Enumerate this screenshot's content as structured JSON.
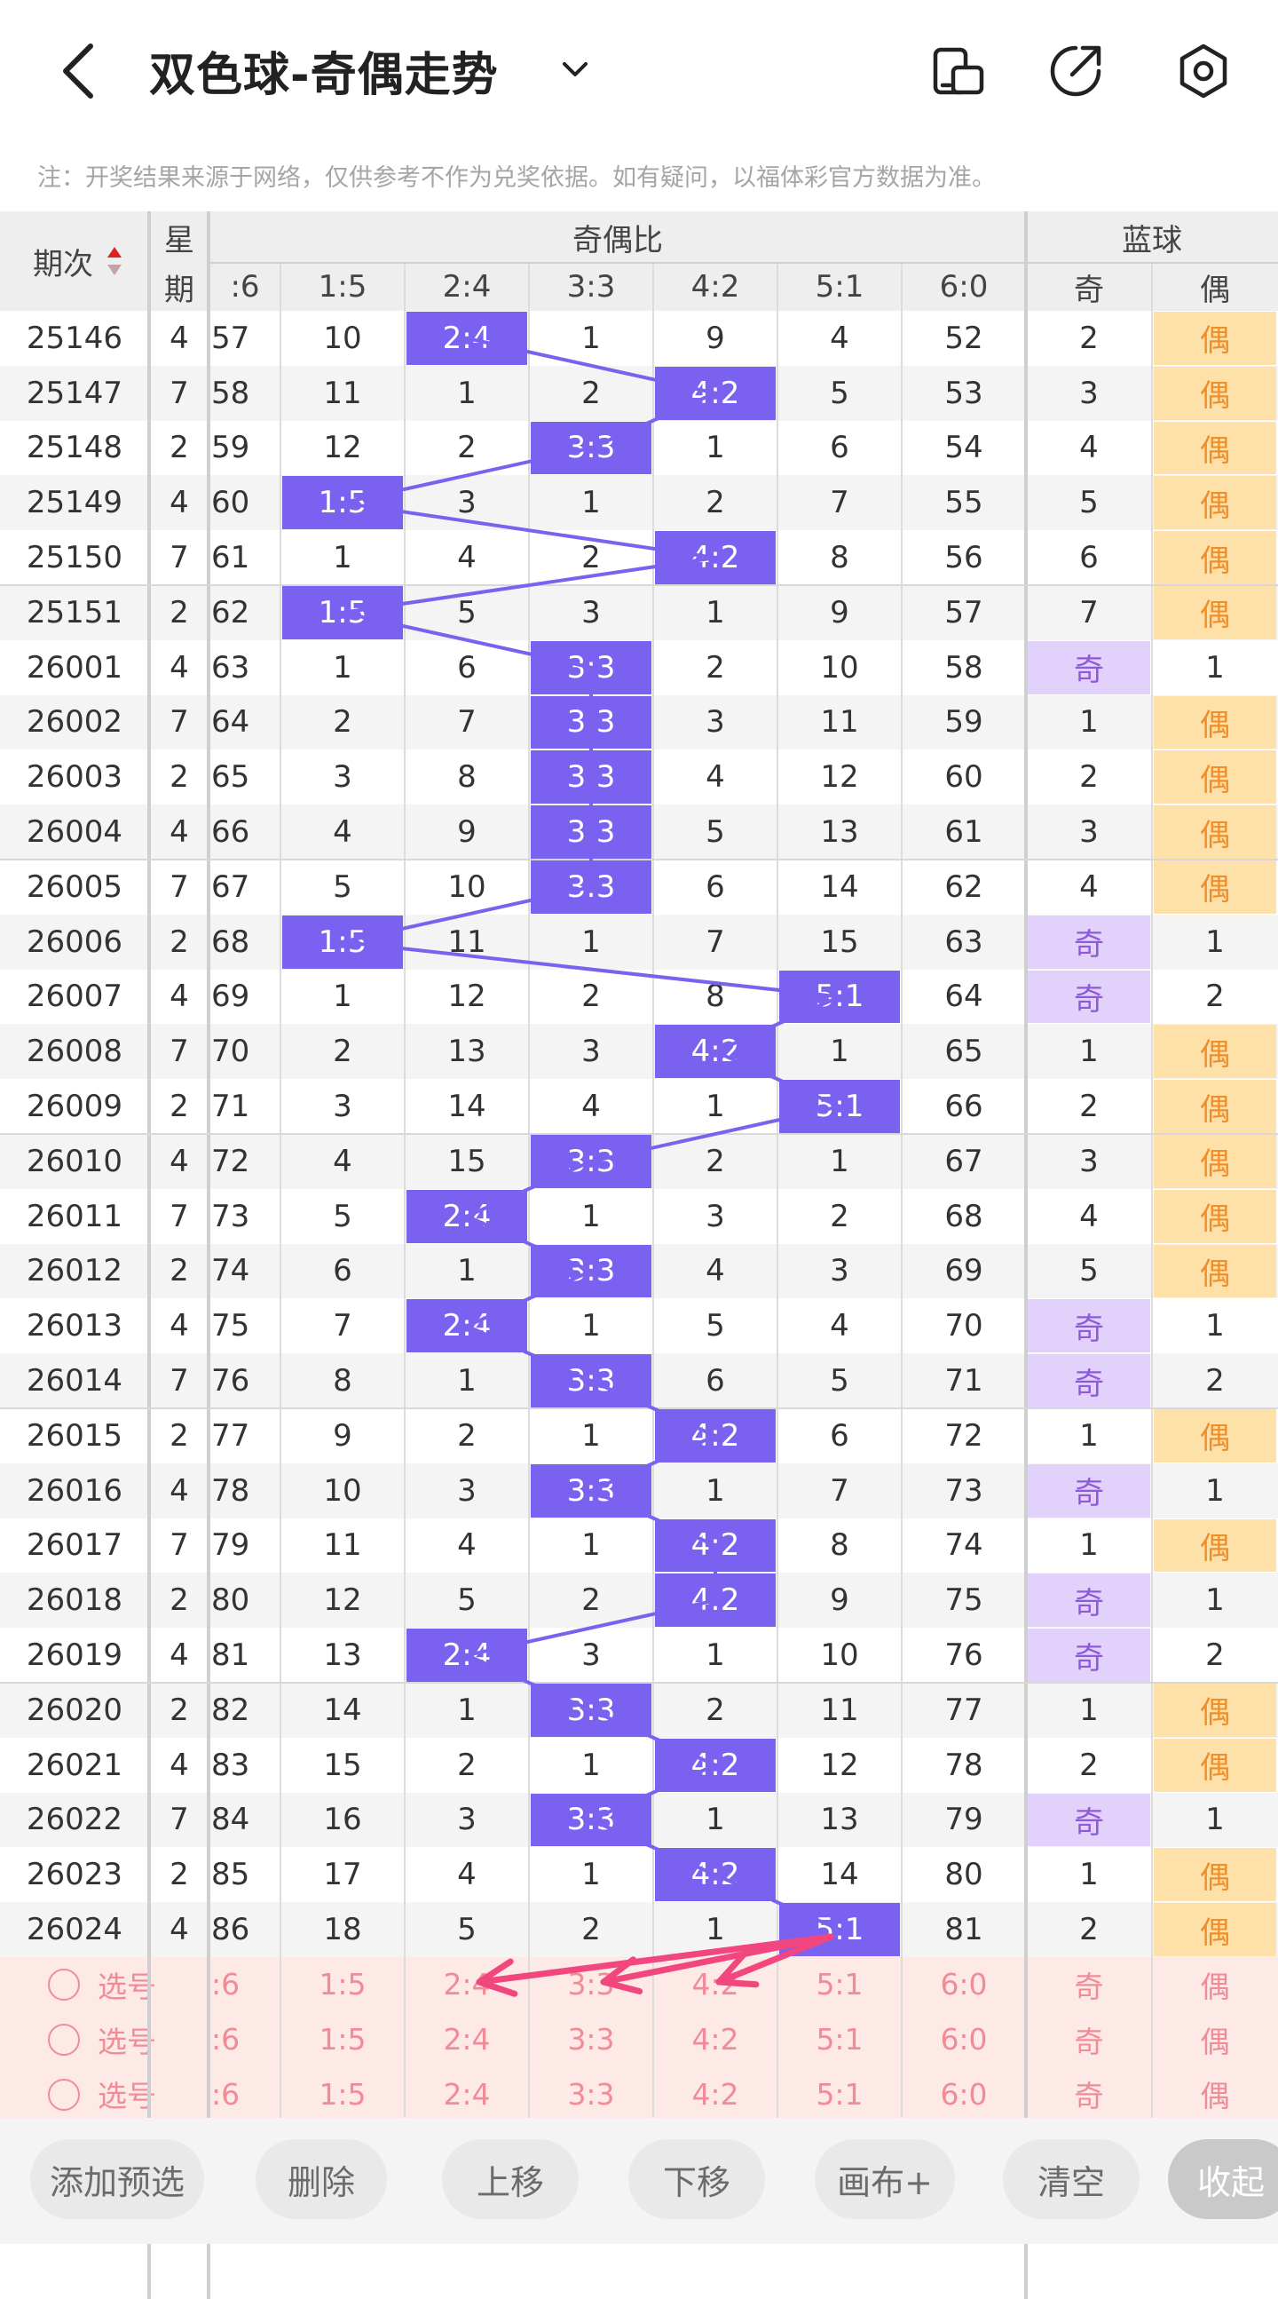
{
  "header": {
    "title": "双色球-奇偶走势",
    "notice": "注：开奖结果来源于网络，仅供参考不作为兑奖依据。如有疑问，以福体彩官方数据为准。"
  },
  "table": {
    "col_issue": "期次",
    "col_week_1": "星",
    "col_week_2": "期",
    "group_ratio": "奇偶比",
    "group_blue": "蓝球",
    "ratio_headers": [
      ":6",
      "1:5",
      "2:4",
      "3:3",
      "4:2",
      "5:1",
      "6:0"
    ],
    "blue_headers": [
      "奇",
      "偶"
    ],
    "rows": [
      {
        "issue": "25146",
        "week": "4",
        "c": [
          "57",
          "10",
          "2:4",
          "1",
          "9",
          "4",
          "52"
        ],
        "hl": 2,
        "odd": "2",
        "even": "偶",
        "blue": "even"
      },
      {
        "issue": "25147",
        "week": "7",
        "c": [
          "58",
          "11",
          "1",
          "2",
          "4:2",
          "5",
          "53"
        ],
        "hl": 4,
        "odd": "3",
        "even": "偶",
        "blue": "even"
      },
      {
        "issue": "25148",
        "week": "2",
        "c": [
          "59",
          "12",
          "2",
          "3:3",
          "1",
          "6",
          "54"
        ],
        "hl": 3,
        "odd": "4",
        "even": "偶",
        "blue": "even"
      },
      {
        "issue": "25149",
        "week": "4",
        "c": [
          "60",
          "1:5",
          "3",
          "1",
          "2",
          "7",
          "55"
        ],
        "hl": 1,
        "odd": "5",
        "even": "偶",
        "blue": "even"
      },
      {
        "issue": "25150",
        "week": "7",
        "c": [
          "61",
          "1",
          "4",
          "2",
          "4:2",
          "8",
          "56"
        ],
        "hl": 4,
        "odd": "6",
        "even": "偶",
        "blue": "even"
      },
      {
        "issue": "25151",
        "week": "2",
        "c": [
          "62",
          "1:5",
          "5",
          "3",
          "1",
          "9",
          "57"
        ],
        "hl": 1,
        "odd": "7",
        "even": "偶",
        "blue": "even"
      },
      {
        "issue": "26001",
        "week": "4",
        "c": [
          "63",
          "1",
          "6",
          "3:3",
          "2",
          "10",
          "58"
        ],
        "hl": 3,
        "odd": "奇",
        "even": "1",
        "blue": "odd"
      },
      {
        "issue": "26002",
        "week": "7",
        "c": [
          "64",
          "2",
          "7",
          "3:3",
          "3",
          "11",
          "59"
        ],
        "hl": 3,
        "odd": "1",
        "even": "偶",
        "blue": "even"
      },
      {
        "issue": "26003",
        "week": "2",
        "c": [
          "65",
          "3",
          "8",
          "3:3",
          "4",
          "12",
          "60"
        ],
        "hl": 3,
        "odd": "2",
        "even": "偶",
        "blue": "even"
      },
      {
        "issue": "26004",
        "week": "4",
        "c": [
          "66",
          "4",
          "9",
          "3:3",
          "5",
          "13",
          "61"
        ],
        "hl": 3,
        "odd": "3",
        "even": "偶",
        "blue": "even"
      },
      {
        "issue": "26005",
        "week": "7",
        "c": [
          "67",
          "5",
          "10",
          "3:3",
          "6",
          "14",
          "62"
        ],
        "hl": 3,
        "odd": "4",
        "even": "偶",
        "blue": "even"
      },
      {
        "issue": "26006",
        "week": "2",
        "c": [
          "68",
          "1:5",
          "11",
          "1",
          "7",
          "15",
          "63"
        ],
        "hl": 1,
        "odd": "奇",
        "even": "1",
        "blue": "odd"
      },
      {
        "issue": "26007",
        "week": "4",
        "c": [
          "69",
          "1",
          "12",
          "2",
          "8",
          "5:1",
          "64"
        ],
        "hl": 5,
        "odd": "奇",
        "even": "2",
        "blue": "odd"
      },
      {
        "issue": "26008",
        "week": "7",
        "c": [
          "70",
          "2",
          "13",
          "3",
          "4:2",
          "1",
          "65"
        ],
        "hl": 4,
        "odd": "1",
        "even": "偶",
        "blue": "even"
      },
      {
        "issue": "26009",
        "week": "2",
        "c": [
          "71",
          "3",
          "14",
          "4",
          "1",
          "5:1",
          "66"
        ],
        "hl": 5,
        "odd": "2",
        "even": "偶",
        "blue": "even"
      },
      {
        "issue": "26010",
        "week": "4",
        "c": [
          "72",
          "4",
          "15",
          "3:3",
          "2",
          "1",
          "67"
        ],
        "hl": 3,
        "odd": "3",
        "even": "偶",
        "blue": "even"
      },
      {
        "issue": "26011",
        "week": "7",
        "c": [
          "73",
          "5",
          "2:4",
          "1",
          "3",
          "2",
          "68"
        ],
        "hl": 2,
        "odd": "4",
        "even": "偶",
        "blue": "even"
      },
      {
        "issue": "26012",
        "week": "2",
        "c": [
          "74",
          "6",
          "1",
          "3:3",
          "4",
          "3",
          "69"
        ],
        "hl": 3,
        "odd": "5",
        "even": "偶",
        "blue": "even"
      },
      {
        "issue": "26013",
        "week": "4",
        "c": [
          "75",
          "7",
          "2:4",
          "1",
          "5",
          "4",
          "70"
        ],
        "hl": 2,
        "odd": "奇",
        "even": "1",
        "blue": "odd"
      },
      {
        "issue": "26014",
        "week": "7",
        "c": [
          "76",
          "8",
          "1",
          "3:3",
          "6",
          "5",
          "71"
        ],
        "hl": 3,
        "odd": "奇",
        "even": "2",
        "blue": "odd"
      },
      {
        "issue": "26015",
        "week": "2",
        "c": [
          "77",
          "9",
          "2",
          "1",
          "4:2",
          "6",
          "72"
        ],
        "hl": 4,
        "odd": "1",
        "even": "偶",
        "blue": "even"
      },
      {
        "issue": "26016",
        "week": "4",
        "c": [
          "78",
          "10",
          "3",
          "3:3",
          "1",
          "7",
          "73"
        ],
        "hl": 3,
        "odd": "奇",
        "even": "1",
        "blue": "odd"
      },
      {
        "issue": "26017",
        "week": "7",
        "c": [
          "79",
          "11",
          "4",
          "1",
          "4:2",
          "8",
          "74"
        ],
        "hl": 4,
        "odd": "1",
        "even": "偶",
        "blue": "even"
      },
      {
        "issue": "26018",
        "week": "2",
        "c": [
          "80",
          "12",
          "5",
          "2",
          "4:2",
          "9",
          "75"
        ],
        "hl": 4,
        "odd": "奇",
        "even": "1",
        "blue": "odd"
      },
      {
        "issue": "26019",
        "week": "4",
        "c": [
          "81",
          "13",
          "2:4",
          "3",
          "1",
          "10",
          "76"
        ],
        "hl": 2,
        "odd": "奇",
        "even": "2",
        "blue": "odd"
      },
      {
        "issue": "26020",
        "week": "2",
        "c": [
          "82",
          "14",
          "1",
          "3:3",
          "2",
          "11",
          "77"
        ],
        "hl": 3,
        "odd": "1",
        "even": "偶",
        "blue": "even"
      },
      {
        "issue": "26021",
        "week": "4",
        "c": [
          "83",
          "15",
          "2",
          "1",
          "4:2",
          "12",
          "78"
        ],
        "hl": 4,
        "odd": "2",
        "even": "偶",
        "blue": "even"
      },
      {
        "issue": "26022",
        "week": "7",
        "c": [
          "84",
          "16",
          "3",
          "3:3",
          "1",
          "13",
          "79"
        ],
        "hl": 3,
        "odd": "奇",
        "even": "1",
        "blue": "odd"
      },
      {
        "issue": "26023",
        "week": "2",
        "c": [
          "85",
          "17",
          "4",
          "1",
          "4:2",
          "14",
          "80"
        ],
        "hl": 4,
        "odd": "1",
        "even": "偶",
        "blue": "even"
      },
      {
        "issue": "26024",
        "week": "4",
        "c": [
          "86",
          "18",
          "5",
          "2",
          "1",
          "5:1",
          "81"
        ],
        "hl": 5,
        "odd": "2",
        "even": "偶",
        "blue": "even"
      }
    ],
    "pick_label": "选号",
    "pick_cells": [
      ":6",
      "1:5",
      "2:4",
      "3:3",
      "4:2",
      "5:1",
      "6:0",
      "奇",
      "偶"
    ]
  },
  "footer": {
    "buttons": [
      "添加预选",
      "删除",
      "上移",
      "下移",
      "画布+",
      "清空",
      "收起"
    ]
  },
  "colors": {
    "highlight": "#7b61f0",
    "blue_odd_bg": "#e2d2fb",
    "blue_even_bg": "#fde1a8",
    "pick_bg": "#fde9e6",
    "arrow": "#f2467f"
  }
}
